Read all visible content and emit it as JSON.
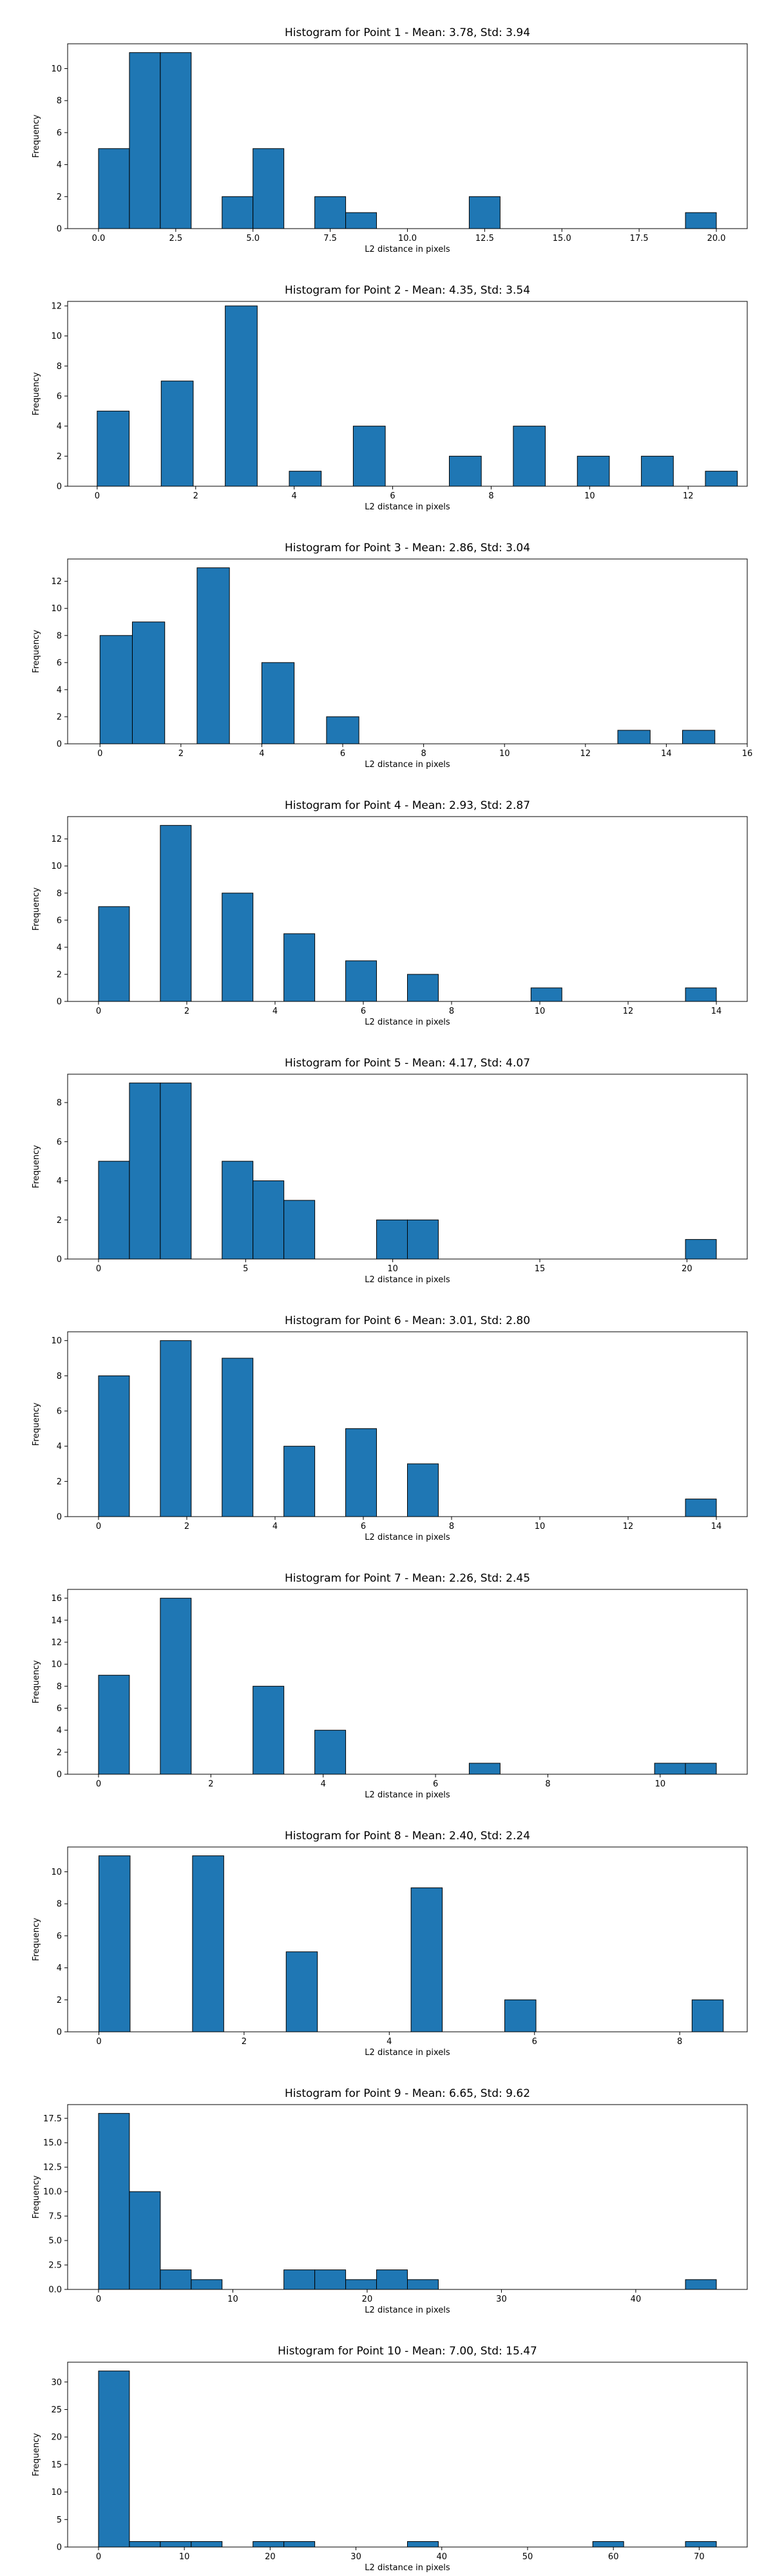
{
  "figure": {
    "bar_color": "#1f77b4",
    "edge_color": "#000000"
  },
  "chart_data": [
    {
      "type": "bar",
      "title": "Histogram for Point 1 - Mean: 3.78, Std: 3.94",
      "xlabel": "L2 distance in pixels",
      "ylabel": "Frequency",
      "xlim": [
        -1,
        21
      ],
      "ylim": [
        0,
        11.55
      ],
      "xticks": [
        0,
        2.5,
        5,
        7.5,
        10,
        12.5,
        15,
        17.5,
        20
      ],
      "xtick_labels": [
        "0.0",
        "2.5",
        "5.0",
        "7.5",
        "10.0",
        "12.5",
        "15.0",
        "17.5",
        "20.0"
      ],
      "yticks": [
        0,
        2,
        4,
        6,
        8,
        10
      ],
      "ytick_labels": [
        "0",
        "2",
        "4",
        "6",
        "8",
        "10"
      ],
      "bins": [
        [
          0,
          1,
          5
        ],
        [
          1,
          2,
          11
        ],
        [
          2,
          3,
          11
        ],
        [
          4,
          5,
          2
        ],
        [
          5,
          6,
          5
        ],
        [
          7,
          8,
          2
        ],
        [
          8,
          9,
          1
        ],
        [
          12,
          13,
          2
        ],
        [
          19,
          20,
          1
        ]
      ]
    },
    {
      "type": "bar",
      "title": "Histogram for Point 2 - Mean: 4.35, Std: 3.54",
      "xlabel": "L2 distance in pixels",
      "ylabel": "Frequency",
      "xlim": [
        -0.6,
        13.2
      ],
      "ylim": [
        0,
        12.3
      ],
      "xticks": [
        0,
        2,
        4,
        6,
        8,
        10,
        12
      ],
      "xtick_labels": [
        "0",
        "2",
        "4",
        "6",
        "8",
        "10",
        "12"
      ],
      "yticks": [
        0,
        2,
        4,
        6,
        8,
        10,
        12
      ],
      "ytick_labels": [
        "0",
        "2",
        "4",
        "6",
        "8",
        "10",
        "12"
      ],
      "bins": [
        [
          0,
          0.65,
          5
        ],
        [
          1.3,
          1.95,
          7
        ],
        [
          2.6,
          3.25,
          12
        ],
        [
          3.9,
          4.55,
          1
        ],
        [
          5.2,
          5.85,
          4
        ],
        [
          7.15,
          7.8,
          2
        ],
        [
          8.45,
          9.1,
          4
        ],
        [
          9.75,
          10.4,
          2
        ],
        [
          11.05,
          11.7,
          2
        ],
        [
          12.35,
          13.0,
          1
        ]
      ]
    },
    {
      "type": "bar",
      "title": "Histogram for Point 3 - Mean: 2.86, Std: 3.04",
      "xlabel": "L2 distance in pixels",
      "ylabel": "Frequency",
      "xlim": [
        -0.8,
        16.0
      ],
      "ylim": [
        0,
        13.65
      ],
      "xticks": [
        0,
        2,
        4,
        6,
        8,
        10,
        12,
        14,
        16
      ],
      "xtick_labels": [
        "0",
        "2",
        "4",
        "6",
        "8",
        "10",
        "12",
        "14",
        "16"
      ],
      "yticks": [
        0,
        2,
        4,
        6,
        8,
        10,
        12
      ],
      "ytick_labels": [
        "0",
        "2",
        "4",
        "6",
        "8",
        "10",
        "12"
      ],
      "bins": [
        [
          0,
          0.8,
          8
        ],
        [
          0.8,
          1.6,
          9
        ],
        [
          2.4,
          3.2,
          13
        ],
        [
          4.0,
          4.8,
          6
        ],
        [
          5.6,
          6.4,
          2
        ],
        [
          12.8,
          13.6,
          1
        ],
        [
          14.4,
          15.2,
          1
        ]
      ]
    },
    {
      "type": "bar",
      "title": "Histogram for Point 4 - Mean: 2.93, Std: 2.87",
      "xlabel": "L2 distance in pixels",
      "ylabel": "Frequency",
      "xlim": [
        -0.7,
        14.7
      ],
      "ylim": [
        0,
        13.65
      ],
      "xticks": [
        0,
        2,
        4,
        6,
        8,
        10,
        12,
        14
      ],
      "xtick_labels": [
        "0",
        "2",
        "4",
        "6",
        "8",
        "10",
        "12",
        "14"
      ],
      "yticks": [
        0,
        2,
        4,
        6,
        8,
        10,
        12
      ],
      "ytick_labels": [
        "0",
        "2",
        "4",
        "6",
        "8",
        "10",
        "12"
      ],
      "bins": [
        [
          0,
          0.7,
          7
        ],
        [
          1.4,
          2.1,
          13
        ],
        [
          2.8,
          3.5,
          8
        ],
        [
          4.2,
          4.9,
          5
        ],
        [
          5.6,
          6.3,
          3
        ],
        [
          7.0,
          7.7,
          2
        ],
        [
          9.8,
          10.5,
          1
        ],
        [
          13.3,
          14.0,
          1
        ]
      ]
    },
    {
      "type": "bar",
      "title": "Histogram for Point 5 - Mean: 4.17, Std: 4.07",
      "xlabel": "L2 distance in pixels",
      "ylabel": "Frequency",
      "xlim": [
        -1.05,
        22.05
      ],
      "ylim": [
        0,
        9.45
      ],
      "xticks": [
        0,
        5,
        10,
        15,
        20
      ],
      "xtick_labels": [
        "0",
        "5",
        "10",
        "15",
        "20"
      ],
      "yticks": [
        0,
        2,
        4,
        6,
        8
      ],
      "ytick_labels": [
        "0",
        "2",
        "4",
        "6",
        "8"
      ],
      "bins": [
        [
          0,
          1.05,
          5
        ],
        [
          1.05,
          2.1,
          9
        ],
        [
          2.1,
          3.15,
          9
        ],
        [
          4.2,
          5.25,
          5
        ],
        [
          5.25,
          6.3,
          4
        ],
        [
          6.3,
          7.35,
          3
        ],
        [
          9.45,
          10.5,
          2
        ],
        [
          10.5,
          11.55,
          2
        ],
        [
          19.95,
          21.0,
          1
        ]
      ]
    },
    {
      "type": "bar",
      "title": "Histogram for Point 6 - Mean: 3.01, Std: 2.80",
      "xlabel": "L2 distance in pixels",
      "ylabel": "Frequency",
      "xlim": [
        -0.7,
        14.7
      ],
      "ylim": [
        0,
        10.5
      ],
      "xticks": [
        0,
        2,
        4,
        6,
        8,
        10,
        12,
        14
      ],
      "xtick_labels": [
        "0",
        "2",
        "4",
        "6",
        "8",
        "10",
        "12",
        "14"
      ],
      "yticks": [
        0,
        2,
        4,
        6,
        8,
        10
      ],
      "ytick_labels": [
        "0",
        "2",
        "4",
        "6",
        "8",
        "10"
      ],
      "bins": [
        [
          0,
          0.7,
          8
        ],
        [
          1.4,
          2.1,
          10
        ],
        [
          2.8,
          3.5,
          9
        ],
        [
          4.2,
          4.9,
          4
        ],
        [
          5.6,
          6.3,
          5
        ],
        [
          7.0,
          7.7,
          3
        ],
        [
          13.3,
          14.0,
          1
        ]
      ]
    },
    {
      "type": "bar",
      "title": "Histogram for Point 7 - Mean: 2.26, Std: 2.45",
      "xlabel": "L2 distance in pixels",
      "ylabel": "Frequency",
      "xlim": [
        -0.55,
        11.55
      ],
      "ylim": [
        0,
        16.8
      ],
      "xticks": [
        0,
        2,
        4,
        6,
        8,
        10
      ],
      "xtick_labels": [
        "0",
        "2",
        "4",
        "6",
        "8",
        "10"
      ],
      "yticks": [
        0,
        2,
        4,
        6,
        8,
        10,
        12,
        14,
        16
      ],
      "ytick_labels": [
        "0",
        "2",
        "4",
        "6",
        "8",
        "10",
        "12",
        "14",
        "16"
      ],
      "bins": [
        [
          0,
          0.55,
          9
        ],
        [
          1.1,
          1.65,
          16
        ],
        [
          2.75,
          3.3,
          8
        ],
        [
          3.85,
          4.4,
          4
        ],
        [
          6.6,
          7.15,
          1
        ],
        [
          9.9,
          10.45,
          1
        ],
        [
          10.45,
          11.0,
          1
        ]
      ]
    },
    {
      "type": "bar",
      "title": "Histogram for Point 8 - Mean: 2.40, Std: 2.24",
      "xlabel": "L2 distance in pixels",
      "ylabel": "Frequency",
      "xlim": [
        -0.43,
        8.93
      ],
      "ylim": [
        0,
        11.55
      ],
      "xticks": [
        0,
        2,
        4,
        6,
        8
      ],
      "xtick_labels": [
        "0",
        "2",
        "4",
        "6",
        "8"
      ],
      "yticks": [
        0,
        2,
        4,
        6,
        8,
        10
      ],
      "ytick_labels": [
        "0",
        "2",
        "4",
        "6",
        "8",
        "10"
      ],
      "bins": [
        [
          0,
          0.43,
          11
        ],
        [
          1.29,
          1.72,
          11
        ],
        [
          2.58,
          3.01,
          5
        ],
        [
          4.3,
          4.73,
          9
        ],
        [
          5.59,
          6.02,
          2
        ],
        [
          8.17,
          8.6,
          2
        ]
      ]
    },
    {
      "type": "bar",
      "title": "Histogram for Point 9 - Mean: 6.65, Std: 9.62",
      "xlabel": "L2 distance in pixels",
      "ylabel": "Frequency",
      "xlim": [
        -2.3,
        48.3
      ],
      "ylim": [
        0,
        18.9
      ],
      "xticks": [
        0,
        10,
        20,
        30,
        40
      ],
      "xtick_labels": [
        "0",
        "10",
        "20",
        "30",
        "40"
      ],
      "yticks": [
        0,
        2.5,
        5,
        7.5,
        10,
        12.5,
        15,
        17.5
      ],
      "ytick_labels": [
        "0.0",
        "2.5",
        "5.0",
        "7.5",
        "10.0",
        "12.5",
        "15.0",
        "17.5"
      ],
      "bins": [
        [
          0,
          2.3,
          18
        ],
        [
          2.3,
          4.6,
          10
        ],
        [
          4.6,
          6.9,
          2
        ],
        [
          6.9,
          9.2,
          1
        ],
        [
          13.8,
          16.1,
          2
        ],
        [
          16.1,
          18.4,
          2
        ],
        [
          18.4,
          20.7,
          1
        ],
        [
          20.7,
          23.0,
          2
        ],
        [
          23.0,
          25.3,
          1
        ],
        [
          43.7,
          46.0,
          1
        ]
      ]
    },
    {
      "type": "bar",
      "title": "Histogram for Point 10 - Mean: 7.00, Std: 15.47",
      "xlabel": "L2 distance in pixels",
      "ylabel": "Frequency",
      "xlim": [
        -3.6,
        75.6
      ],
      "ylim": [
        0,
        33.6
      ],
      "xticks": [
        0,
        10,
        20,
        30,
        40,
        50,
        60,
        70
      ],
      "xtick_labels": [
        "0",
        "10",
        "20",
        "30",
        "40",
        "50",
        "60",
        "70"
      ],
      "yticks": [
        0,
        5,
        10,
        15,
        20,
        25,
        30
      ],
      "ytick_labels": [
        "0",
        "5",
        "10",
        "15",
        "20",
        "25",
        "30"
      ],
      "bins": [
        [
          0,
          3.6,
          32
        ],
        [
          3.6,
          7.2,
          1
        ],
        [
          7.2,
          10.8,
          1
        ],
        [
          10.8,
          14.4,
          1
        ],
        [
          18.0,
          21.6,
          1
        ],
        [
          21.6,
          25.2,
          1
        ],
        [
          36.0,
          39.6,
          1
        ],
        [
          57.6,
          61.2,
          1
        ],
        [
          68.4,
          72.0,
          1
        ]
      ]
    }
  ]
}
